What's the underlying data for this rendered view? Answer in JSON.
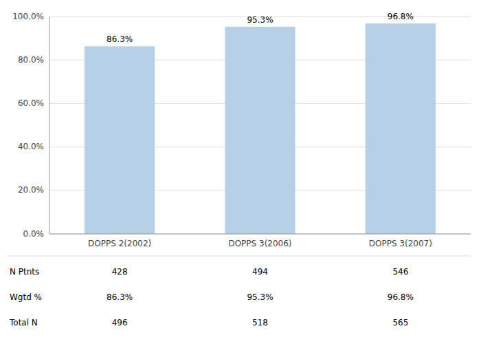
{
  "chart_data": {
    "type": "bar",
    "categories": [
      "DOPPS 2(2002)",
      "DOPPS 3(2006)",
      "DOPPS 3(2007)"
    ],
    "values": [
      86.3,
      95.3,
      96.8
    ],
    "value_labels": [
      "86.3%",
      "95.3%",
      "96.8%"
    ],
    "data_labels": true,
    "color": "#b8cfe8",
    "ylim": [
      0,
      100
    ],
    "yticks": [
      {
        "value": 0,
        "label": "0.0%"
      },
      {
        "value": 20,
        "label": "20.0%"
      },
      {
        "value": 40,
        "label": "40.0%"
      },
      {
        "value": 60,
        "label": "60.0%"
      },
      {
        "value": 80,
        "label": "80.0%"
      },
      {
        "value": 100,
        "label": "100.0%"
      }
    ],
    "grid": true,
    "table": {
      "row_labels": [
        "N Ptnts",
        "Wgtd %",
        "Total N"
      ],
      "rows": [
        [
          "428",
          "494",
          "546"
        ],
        [
          "86.3%",
          "95.3%",
          "96.8%"
        ],
        [
          "496",
          "518",
          "565"
        ]
      ]
    }
  }
}
